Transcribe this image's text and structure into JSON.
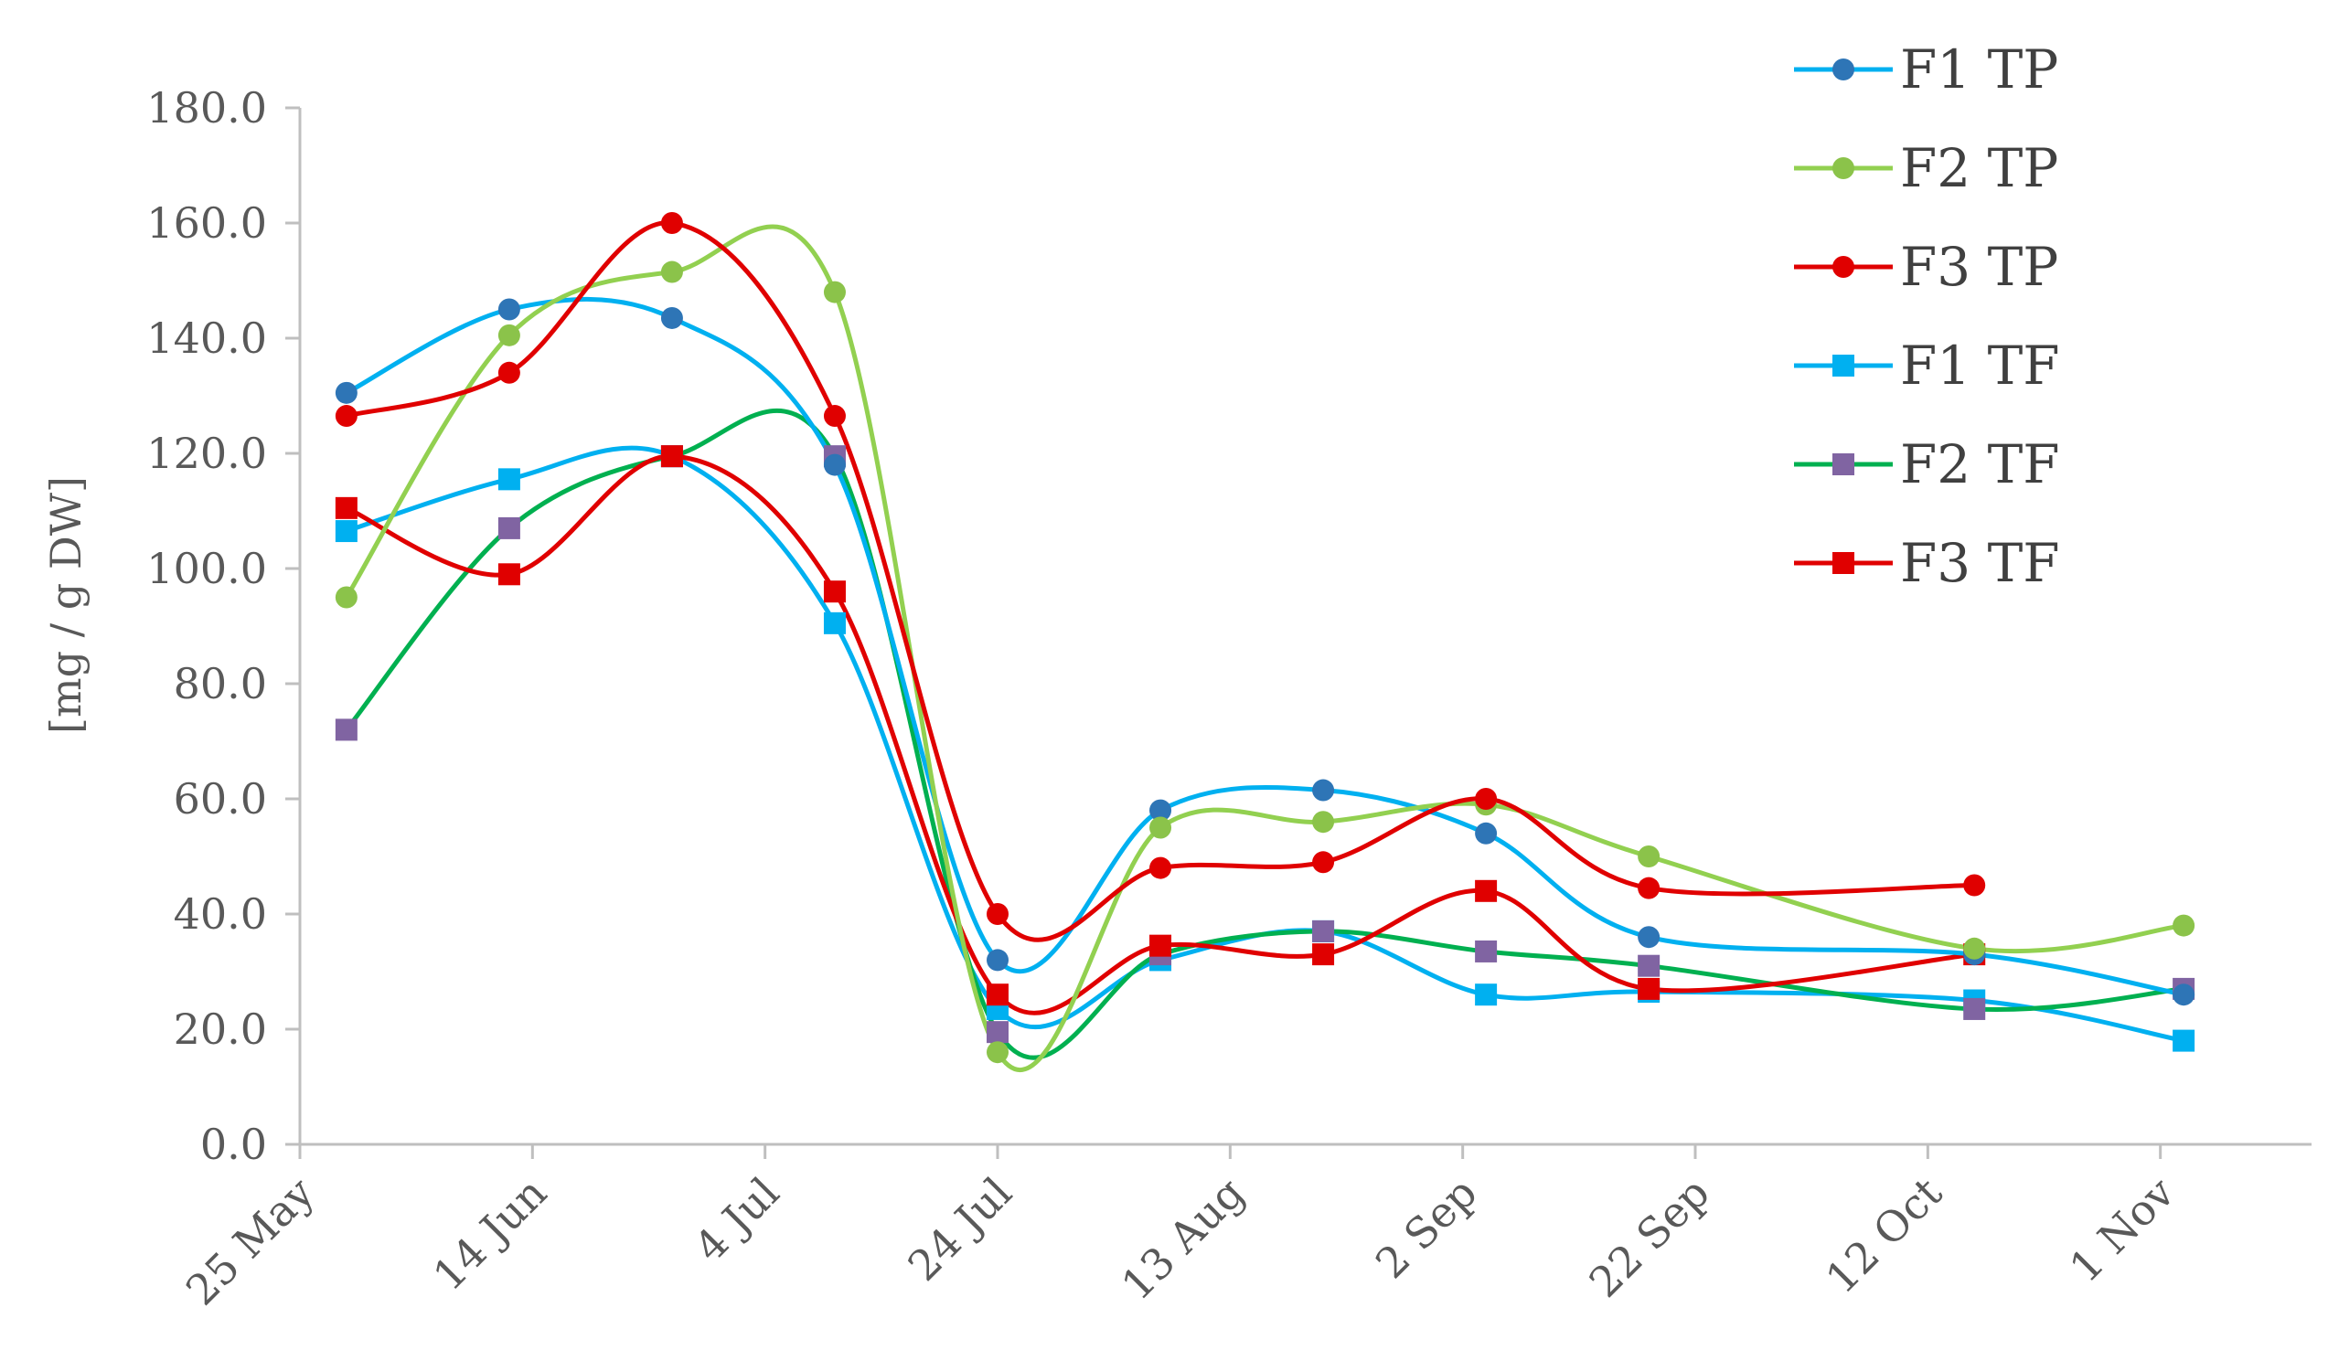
{
  "chart_data": {
    "type": "line",
    "title": "",
    "xlabel": "",
    "ylabel": "[mg  / g DW]",
    "ylim": [
      0,
      180
    ],
    "y_ticks": [
      "0.0",
      "20.0",
      "40.0",
      "60.0",
      "80.0",
      "100.0",
      "120.0",
      "140.0",
      "160.0",
      "180.0"
    ],
    "x_tick_labels": [
      "25 May",
      "14 Jun",
      "4 Jul",
      "24 Jul",
      "13 Aug",
      "2 Sep",
      "22 Sep",
      "12 Oct",
      "1 Nov"
    ],
    "x_tick_days": [
      0,
      20,
      40,
      60,
      80,
      100,
      120,
      140,
      160
    ],
    "x_range_days": [
      0,
      173
    ],
    "x_axis_note": "x values are days after 25 May",
    "legend_position": "top-right",
    "grid": false,
    "smooth": true,
    "series": [
      {
        "name": "F1 TP",
        "color": "#00B0F0",
        "marker": "circle",
        "marker_color": "#2E75B6",
        "x": [
          4,
          18,
          32,
          46,
          60,
          74,
          88,
          102,
          116,
          144,
          162
        ],
        "y": [
          130.5,
          145,
          143.5,
          118,
          32,
          58,
          61.5,
          54,
          36,
          33,
          26
        ]
      },
      {
        "name": "F2 TP",
        "color": "#92D050",
        "marker": "circle",
        "marker_color": "#8BC34A",
        "x": [
          4,
          18,
          32,
          46,
          60,
          74,
          88,
          102,
          116,
          144,
          162
        ],
        "y": [
          95,
          140.5,
          151.5,
          148,
          16,
          55,
          56,
          59,
          50,
          34,
          38
        ]
      },
      {
        "name": "F3 TP",
        "color": "#E00000",
        "marker": "circle",
        "marker_color": "#E00000",
        "x": [
          4,
          18,
          32,
          46,
          60,
          74,
          88,
          102,
          116,
          144
        ],
        "y": [
          126.5,
          134,
          160,
          126.5,
          40,
          48,
          49,
          60,
          44.5,
          45
        ]
      },
      {
        "name": "F1 TF",
        "color": "#00B0F0",
        "marker": "square",
        "marker_color": "#00B0F0",
        "x": [
          4,
          18,
          32,
          46,
          60,
          74,
          88,
          102,
          116,
          144,
          162
        ],
        "y": [
          106.5,
          115.5,
          119.5,
          90.5,
          23.5,
          32,
          37,
          26,
          26.5,
          25,
          18
        ]
      },
      {
        "name": "F2 TF",
        "color": "#00B050",
        "marker": "square",
        "marker_color": "#8064A2",
        "x": [
          4,
          18,
          32,
          46,
          60,
          74,
          88,
          102,
          116,
          144,
          162
        ],
        "y": [
          72,
          107,
          119.5,
          119.5,
          19.5,
          33,
          37,
          33.5,
          31,
          23.5,
          27
        ]
      },
      {
        "name": "F3 TF",
        "color": "#E00000",
        "marker": "square",
        "marker_color": "#E00000",
        "x": [
          4,
          18,
          32,
          46,
          60,
          74,
          88,
          102,
          116,
          144
        ],
        "y": [
          110.5,
          99,
          119.5,
          96,
          26,
          34.5,
          33,
          44,
          27,
          33
        ]
      }
    ]
  }
}
